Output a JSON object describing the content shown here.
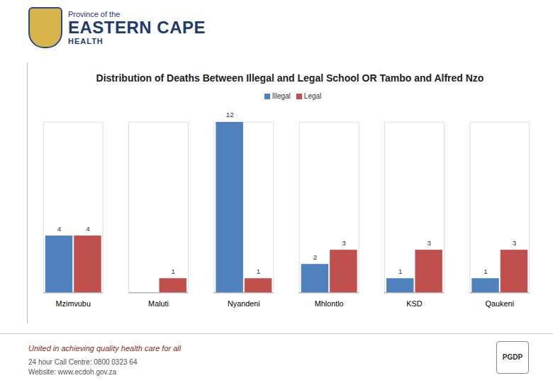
{
  "header": {
    "line1": "Province of the",
    "line2": "EASTERN CAPE",
    "line3": "HEALTH"
  },
  "footer": {
    "slogan": "United in achieving quality health care for all",
    "call_centre": "24 hour Call Centre: 0800 0323 64",
    "website": "Website: www.ecdoh.gov.za",
    "logo_text": "PGDP"
  },
  "chart_data": {
    "type": "bar",
    "title": "Distribution of Deaths Between Illegal and Legal School OR Tambo and Alfred Nzo",
    "categories": [
      "Mzimvubu",
      "Maluti",
      "Nyandeni",
      "Mhlontlo",
      "KSD",
      "Qaukeni"
    ],
    "series": [
      {
        "name": "Illegal",
        "color": "#4f81bd",
        "values": [
          4,
          null,
          12,
          2,
          1,
          1
        ]
      },
      {
        "name": "Legal",
        "color": "#c0504d",
        "values": [
          4,
          1,
          1,
          3,
          3,
          3
        ]
      }
    ],
    "ylim": [
      0,
      12
    ],
    "yticks": [],
    "data_labels": true,
    "tick_labels": "x",
    "legend": "top"
  }
}
